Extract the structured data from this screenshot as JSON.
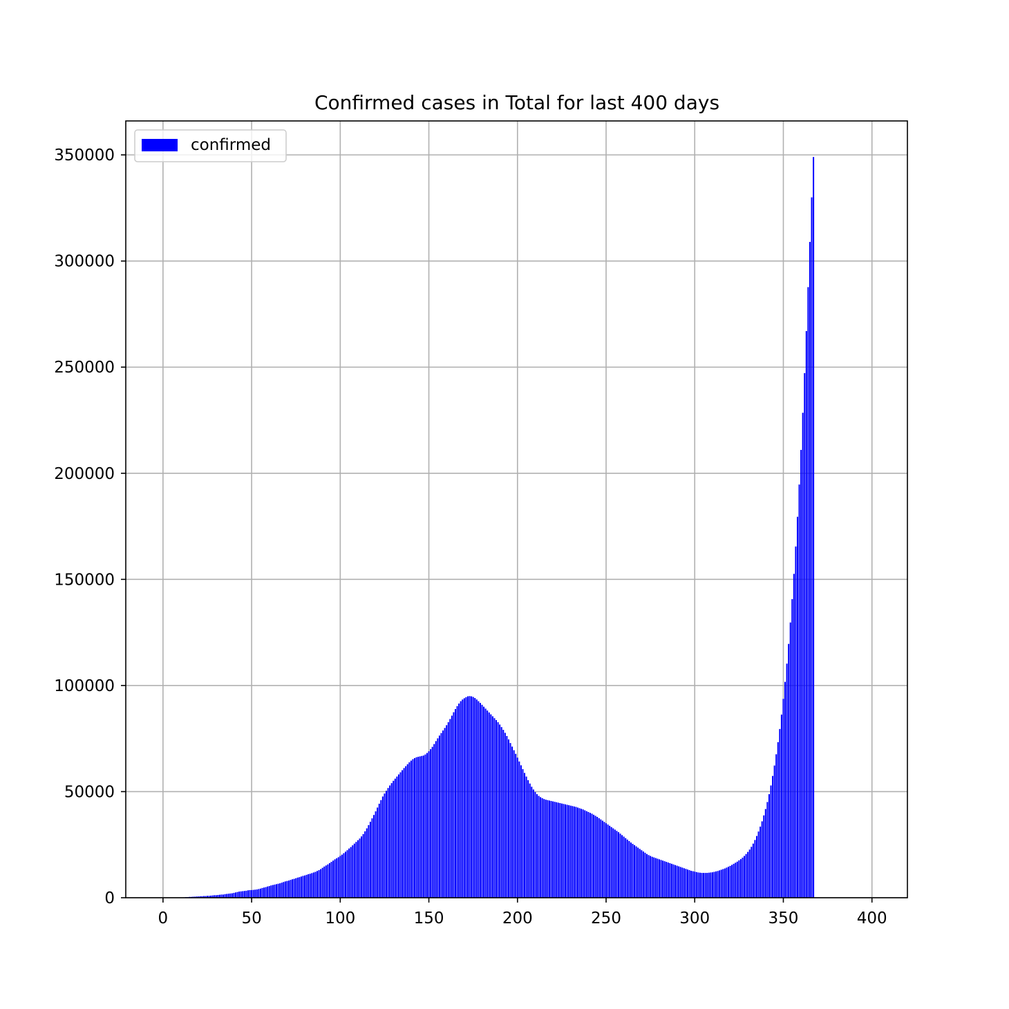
{
  "chart_data": {
    "type": "bar",
    "title": "Confirmed cases in Total for last 400 days",
    "xlabel": "",
    "ylabel": "",
    "xlim": [
      -21,
      420
    ],
    "ylim": [
      0,
      366000
    ],
    "xticks": [
      0,
      50,
      100,
      150,
      200,
      250,
      300,
      350,
      400
    ],
    "yticks": [
      0,
      50000,
      100000,
      150000,
      200000,
      250000,
      300000,
      350000
    ],
    "grid": true,
    "legend": {
      "position": "top-left",
      "entries": [
        "confirmed"
      ]
    },
    "colors": {
      "bar": "#0000ff",
      "grid": "#b0b0b0",
      "axes": "#000000"
    },
    "series": [
      {
        "name": "confirmed",
        "x_start": 0,
        "x_step": 1,
        "values": [
          0,
          0,
          0,
          0,
          0,
          0,
          0,
          0,
          0,
          0,
          0,
          100,
          200,
          300,
          300,
          400,
          400,
          500,
          500,
          600,
          600,
          700,
          700,
          800,
          800,
          900,
          900,
          1000,
          1100,
          1200,
          1200,
          1300,
          1400,
          1500,
          1500,
          1700,
          1800,
          1900,
          2000,
          2100,
          2300,
          2500,
          2700,
          2900,
          3000,
          3100,
          3200,
          3300,
          3500,
          3600,
          3600,
          3700,
          3800,
          3900,
          4100,
          4300,
          4600,
          4800,
          5000,
          5300,
          5500,
          5800,
          6000,
          6200,
          6400,
          6600,
          6800,
          7100,
          7400,
          7700,
          7900,
          8100,
          8400,
          8700,
          8900,
          9200,
          9500,
          9700,
          10000,
          10300,
          10500,
          10800,
          11100,
          11300,
          11600,
          11900,
          12200,
          12600,
          13000,
          13500,
          14100,
          14700,
          15200,
          15700,
          16300,
          16900,
          17500,
          18100,
          18600,
          19100,
          19700,
          20300,
          21000,
          21700,
          22400,
          23200,
          23900,
          24700,
          25500,
          26300,
          27100,
          27900,
          28900,
          30000,
          31300,
          32700,
          34200,
          35800,
          37400,
          39000,
          40700,
          42500,
          44300,
          46000,
          47700,
          49100,
          50400,
          51700,
          52900,
          54000,
          55100,
          56100,
          57100,
          58100,
          59100,
          60100,
          61100,
          62000,
          62900,
          63800,
          64600,
          65300,
          65800,
          66200,
          66400,
          66600,
          66800,
          67000,
          67500,
          68200,
          69000,
          70000,
          71100,
          72400,
          73800,
          75100,
          76400,
          77600,
          78800,
          80000,
          81300,
          82700,
          84200,
          85800,
          87400,
          88900,
          90300,
          91500,
          92600,
          93400,
          94000,
          94500,
          94900,
          95000,
          94900,
          94600,
          94100,
          93400,
          92600,
          91800,
          90900,
          90000,
          89100,
          88200,
          87300,
          86400,
          85500,
          84600,
          83700,
          82700,
          81600,
          80400,
          79100,
          77700,
          76200,
          74600,
          72900,
          71200,
          69500,
          67800,
          66000,
          64200,
          62400,
          60600,
          58800,
          57100,
          55400,
          53800,
          52300,
          51000,
          49800,
          48800,
          48000,
          47400,
          46900,
          46500,
          46200,
          46000,
          45800,
          45600,
          45400,
          45200,
          45000,
          44800,
          44600,
          44400,
          44200,
          44000,
          43800,
          43600,
          43400,
          43200,
          43000,
          42800,
          42500,
          42200,
          41900,
          41600,
          41200,
          40800,
          40400,
          40000,
          39600,
          39100,
          38600,
          38100,
          37500,
          36900,
          36300,
          35700,
          35100,
          34500,
          33900,
          33300,
          32700,
          32100,
          31500,
          30900,
          30200,
          29500,
          28800,
          28100,
          27400,
          26700,
          26000,
          25400,
          24800,
          24200,
          23600,
          23000,
          22400,
          21800,
          21200,
          20600,
          20100,
          19700,
          19300,
          19000,
          18700,
          18400,
          18100,
          17800,
          17500,
          17200,
          16900,
          16600,
          16300,
          16000,
          15700,
          15400,
          15100,
          14800,
          14500,
          14200,
          13900,
          13600,
          13300,
          13000,
          12700,
          12500,
          12300,
          12100,
          11900,
          11800,
          11700,
          11700,
          11700,
          11700,
          11800,
          11900,
          12000,
          12200,
          12400,
          12600,
          12900,
          13200,
          13500,
          13800,
          14200,
          14600,
          15000,
          15500,
          16000,
          16500,
          17000,
          17600,
          18200,
          18900,
          19700,
          20600,
          21600,
          22700,
          24000,
          25500,
          27200,
          29100,
          31200,
          33500,
          36000,
          38800,
          41800,
          45100,
          48800,
          52900,
          57400,
          62300,
          67600,
          73300,
          79500,
          86300,
          93700,
          101700,
          110300,
          119600,
          129700,
          140700,
          152600,
          165500,
          179500,
          194700,
          211000,
          228500,
          247200,
          267000,
          287700,
          309000,
          330000,
          349000
        ]
      }
    ]
  }
}
